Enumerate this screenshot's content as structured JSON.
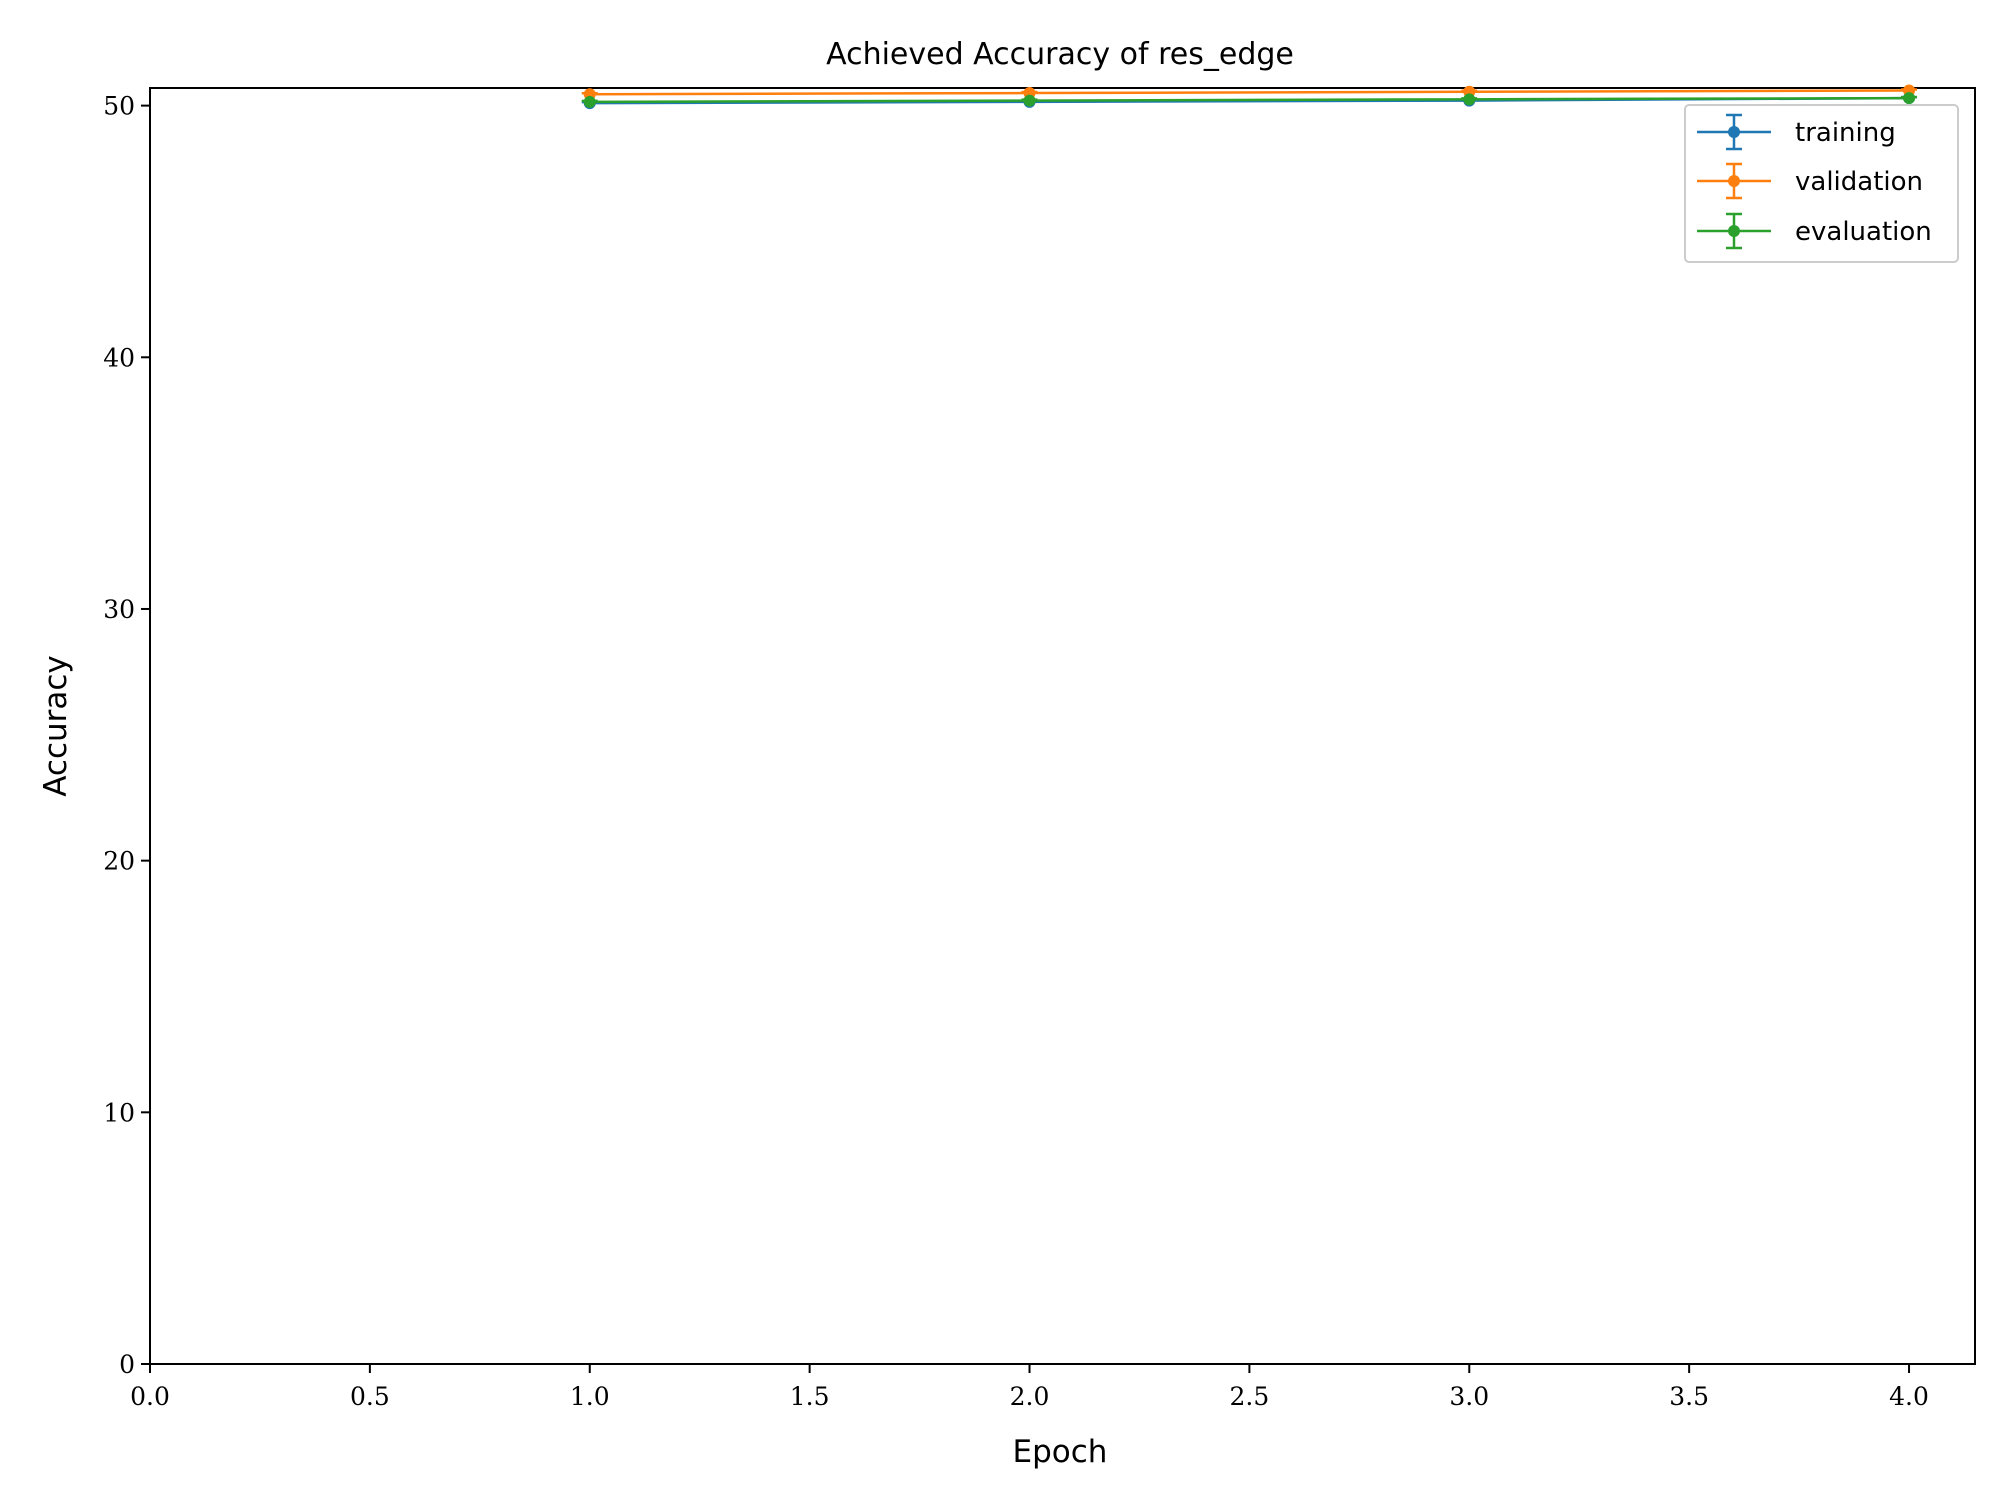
{
  "chart_data": {
    "type": "line",
    "title": "Achieved Accuracy of res_edge",
    "xlabel": "Epoch",
    "ylabel": "Accuracy",
    "xlim": [
      0.0,
      4.15
    ],
    "ylim": [
      0,
      50.7
    ],
    "xticks": [
      "0.0",
      "0.5",
      "1.0",
      "1.5",
      "2.0",
      "2.5",
      "3.0",
      "3.5",
      "4.0"
    ],
    "yticks": [
      "0",
      "10",
      "20",
      "30",
      "40",
      "50"
    ],
    "x": [
      1,
      2,
      3,
      4
    ],
    "series": [
      {
        "name": "training",
        "color": "#1f77b4",
        "values": [
          50.1,
          50.15,
          50.2,
          50.3
        ]
      },
      {
        "name": "validation",
        "color": "#ff7f0e",
        "values": [
          50.45,
          50.5,
          50.55,
          50.6
        ]
      },
      {
        "name": "evaluation",
        "color": "#2ca02c",
        "values": [
          50.15,
          50.2,
          50.25,
          50.3
        ]
      }
    ],
    "grid": false,
    "legend_position": "top-right",
    "error_bars": true
  }
}
